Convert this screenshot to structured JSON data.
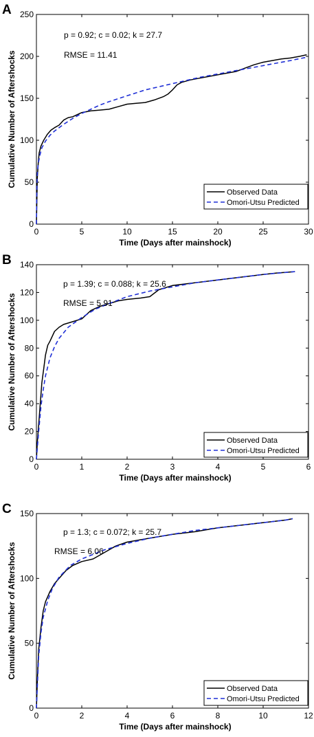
{
  "chart_data": [
    {
      "panel_label": "A",
      "type": "line",
      "xlabel": "Time (Days after mainshock)",
      "ylabel": "Cumulative Number of Aftershocks",
      "xlim": [
        0,
        30
      ],
      "ylim": [
        0,
        250
      ],
      "xticks": [
        0,
        5,
        10,
        15,
        20,
        25,
        30
      ],
      "yticks": [
        0,
        50,
        100,
        150,
        200,
        250
      ],
      "grid": false,
      "legend_position": "bottom-right",
      "annotations": [
        "p = 0.92; c = 0.02; k = 27.7",
        "RMSE = 11.41"
      ],
      "series": [
        {
          "name": "Observed Data",
          "color": "#000000",
          "style": "solid",
          "points": [
            [
              0,
              0
            ],
            [
              0.05,
              30
            ],
            [
              0.1,
              55
            ],
            [
              0.2,
              72
            ],
            [
              0.3,
              85
            ],
            [
              0.5,
              93
            ],
            [
              0.8,
              100
            ],
            [
              1.2,
              107
            ],
            [
              1.6,
              112
            ],
            [
              2,
              115
            ],
            [
              2.5,
              118
            ],
            [
              3,
              124
            ],
            [
              3.5,
              127
            ],
            [
              4,
              128
            ],
            [
              5,
              133
            ],
            [
              6,
              135
            ],
            [
              7,
              136
            ],
            [
              8,
              137
            ],
            [
              9,
              140
            ],
            [
              10,
              143
            ],
            [
              11,
              144
            ],
            [
              12,
              145
            ],
            [
              13,
              148
            ],
            [
              14,
              152
            ],
            [
              14.5,
              155
            ],
            [
              15,
              160
            ],
            [
              15.5,
              166
            ],
            [
              16,
              169
            ],
            [
              17,
              172
            ],
            [
              18,
              174
            ],
            [
              19,
              176
            ],
            [
              20,
              178
            ],
            [
              21,
              180
            ],
            [
              22,
              182
            ],
            [
              23,
              186
            ],
            [
              24,
              190
            ],
            [
              25,
              193
            ],
            [
              26,
              195
            ],
            [
              27,
              197
            ],
            [
              28,
              198
            ],
            [
              29,
              200
            ],
            [
              29.8,
              202
            ]
          ]
        },
        {
          "name": "Omori-Utsu Predicted",
          "color": "#1f2fd6",
          "style": "dashed",
          "points": [
            [
              0,
              0
            ],
            [
              0.02,
              20
            ],
            [
              0.05,
              45
            ],
            [
              0.1,
              60
            ],
            [
              0.2,
              72
            ],
            [
              0.4,
              83
            ],
            [
              0.6,
              91
            ],
            [
              1,
              99
            ],
            [
              1.5,
              106
            ],
            [
              2,
              111
            ],
            [
              3,
              119
            ],
            [
              4,
              126
            ],
            [
              5,
              132
            ],
            [
              6,
              137
            ],
            [
              7,
              142
            ],
            [
              8,
              146
            ],
            [
              10,
              153
            ],
            [
              12,
              160
            ],
            [
              14,
              165
            ],
            [
              16,
              170
            ],
            [
              18,
              175
            ],
            [
              20,
              179
            ],
            [
              22,
              183
            ],
            [
              24,
              187
            ],
            [
              26,
              191
            ],
            [
              28,
              195
            ],
            [
              29.8,
              199
            ]
          ]
        }
      ]
    },
    {
      "panel_label": "B",
      "type": "line",
      "xlabel": "Time (Days after mainshock)",
      "ylabel": "Cumulative Number of Aftershocks",
      "xlim": [
        0,
        6
      ],
      "ylim": [
        0,
        140
      ],
      "xticks": [
        0,
        1,
        2,
        3,
        4,
        5,
        6
      ],
      "yticks": [
        0,
        20,
        40,
        60,
        80,
        100,
        120,
        140
      ],
      "grid": false,
      "legend_position": "bottom-right",
      "annotations": [
        "p = 1.39; c = 0.088; k = 25.6",
        "RMSE = 5.91"
      ],
      "series": [
        {
          "name": "Observed Data",
          "color": "#000000",
          "style": "solid",
          "points": [
            [
              0,
              0
            ],
            [
              0.02,
              12
            ],
            [
              0.05,
              25
            ],
            [
              0.08,
              38
            ],
            [
              0.12,
              55
            ],
            [
              0.16,
              65
            ],
            [
              0.2,
              75
            ],
            [
              0.25,
              82
            ],
            [
              0.3,
              85
            ],
            [
              0.4,
              92
            ],
            [
              0.5,
              95
            ],
            [
              0.6,
              97
            ],
            [
              0.8,
              99
            ],
            [
              1,
              101
            ],
            [
              1.2,
              107
            ],
            [
              1.4,
              110
            ],
            [
              1.6,
              112
            ],
            [
              1.8,
              114
            ],
            [
              2,
              115
            ],
            [
              2.3,
              116
            ],
            [
              2.5,
              117
            ],
            [
              2.7,
              122
            ],
            [
              3,
              125
            ],
            [
              3.5,
              127
            ],
            [
              4,
              129
            ],
            [
              4.5,
              131
            ],
            [
              5,
              133
            ],
            [
              5.3,
              134
            ],
            [
              5.7,
              135
            ]
          ]
        },
        {
          "name": "Omori-Utsu Predicted",
          "color": "#1f2fd6",
          "style": "dashed",
          "points": [
            [
              0,
              0
            ],
            [
              0.02,
              8
            ],
            [
              0.05,
              20
            ],
            [
              0.1,
              38
            ],
            [
              0.15,
              50
            ],
            [
              0.2,
              60
            ],
            [
              0.3,
              73
            ],
            [
              0.4,
              81
            ],
            [
              0.5,
              87
            ],
            [
              0.7,
              95
            ],
            [
              1,
              102
            ],
            [
              1.3,
              108
            ],
            [
              1.6,
              112
            ],
            [
              2,
              117
            ],
            [
              2.5,
              121
            ],
            [
              3,
              124
            ],
            [
              3.5,
              127
            ],
            [
              4,
              129
            ],
            [
              4.5,
              131
            ],
            [
              5,
              133
            ],
            [
              5.7,
              135
            ]
          ]
        }
      ]
    },
    {
      "panel_label": "C",
      "type": "line",
      "xlabel": "Time (Days after mainshock)",
      "ylabel": "Cumulative Number of Aftershocks",
      "xlim": [
        0,
        12
      ],
      "ylim": [
        0,
        150
      ],
      "xticks": [
        0,
        2,
        4,
        6,
        8,
        10,
        12
      ],
      "yticks": [
        0,
        50,
        100,
        150
      ],
      "grid": false,
      "legend_position": "bottom-right",
      "annotations": [
        "p = 1.3; c = 0.072; k = 25.7",
        "RMSE = 6.06"
      ],
      "series": [
        {
          "name": "Observed Data",
          "color": "#000000",
          "style": "solid",
          "points": [
            [
              0,
              0
            ],
            [
              0.05,
              25
            ],
            [
              0.1,
              45
            ],
            [
              0.2,
              62
            ],
            [
              0.3,
              75
            ],
            [
              0.4,
              82
            ],
            [
              0.6,
              90
            ],
            [
              0.8,
              96
            ],
            [
              1,
              100
            ],
            [
              1.3,
              106
            ],
            [
              1.6,
              110
            ],
            [
              2,
              113
            ],
            [
              2.5,
              115
            ],
            [
              3,
              120
            ],
            [
              3.5,
              125
            ],
            [
              4,
              128
            ],
            [
              5,
              131
            ],
            [
              6,
              134
            ],
            [
              7,
              136
            ],
            [
              8,
              139
            ],
            [
              9,
              141
            ],
            [
              10,
              143
            ],
            [
              11,
              145
            ],
            [
              11.3,
              146
            ]
          ]
        },
        {
          "name": "Omori-Utsu Predicted",
          "color": "#1f2fd6",
          "style": "dashed",
          "points": [
            [
              0,
              0
            ],
            [
              0.05,
              20
            ],
            [
              0.1,
              40
            ],
            [
              0.2,
              58
            ],
            [
              0.3,
              70
            ],
            [
              0.5,
              83
            ],
            [
              0.7,
              92
            ],
            [
              1,
              101
            ],
            [
              1.5,
              110
            ],
            [
              2,
              115
            ],
            [
              3,
              122
            ],
            [
              4,
              127
            ],
            [
              5,
              131
            ],
            [
              6,
              134
            ],
            [
              7,
              137
            ],
            [
              8,
              139
            ],
            [
              9,
              141
            ],
            [
              10,
              143
            ],
            [
              11,
              145
            ],
            [
              11.3,
              146
            ]
          ]
        }
      ]
    }
  ]
}
